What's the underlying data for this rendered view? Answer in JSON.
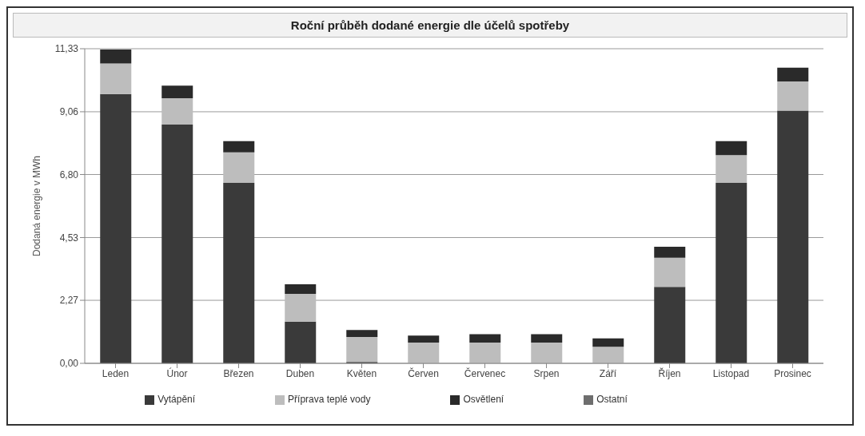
{
  "chart_data": {
    "type": "bar",
    "title": "Roční průběh dodané energie dle účelů spotřeby",
    "ylabel": "Dodaná energie v MWh",
    "stacked": true,
    "grid": "y",
    "legend": "bottom",
    "categories": [
      "Leden",
      "Únor",
      "Březen",
      "Duben",
      "Květen",
      "Červen",
      "Červenec",
      "Srpen",
      "Září",
      "Říjen",
      "Listopad",
      "Prosinec"
    ],
    "ylim": [
      0,
      11.33
    ],
    "yticks": [
      {
        "value": 0,
        "label": "0,00"
      },
      {
        "value": 2.27,
        "label": "2,27"
      },
      {
        "value": 4.53,
        "label": "4,53"
      },
      {
        "value": 6.8,
        "label": "6,80"
      },
      {
        "value": 9.06,
        "label": "9,06"
      },
      {
        "value": 11.33,
        "label": "11,33"
      }
    ],
    "series": [
      {
        "name": "Vytápění",
        "color": "#3a3a3a",
        "values": [
          9.7,
          8.6,
          6.5,
          1.5,
          0.05,
          0,
          0,
          0,
          0,
          2.75,
          6.5,
          9.1
        ]
      },
      {
        "name": "Příprava teplé vody",
        "color": "#bdbdbd",
        "values": [
          1.1,
          0.95,
          1.1,
          1.0,
          0.9,
          0.75,
          0.75,
          0.75,
          0.6,
          1.05,
          1.0,
          1.05
        ]
      },
      {
        "name": "Osvětlení",
        "color": "#2a2a2a",
        "values": [
          0.5,
          0.45,
          0.4,
          0.35,
          0.25,
          0.25,
          0.3,
          0.3,
          0.3,
          0.4,
          0.5,
          0.5
        ]
      },
      {
        "name": "Ostatní",
        "color": "#6e6e6e",
        "values": [
          0,
          0,
          0,
          0,
          0,
          0,
          0,
          0,
          0,
          0,
          0,
          0
        ]
      }
    ]
  }
}
